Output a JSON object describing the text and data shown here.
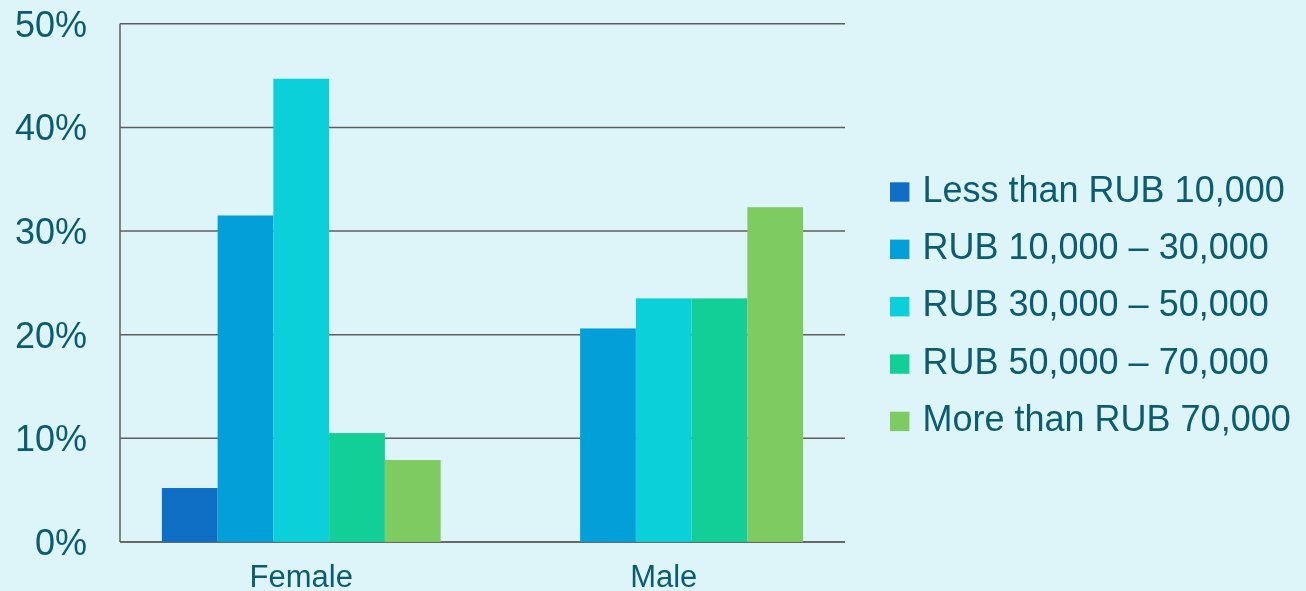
{
  "chart_data": {
    "type": "bar",
    "categories": [
      "Female",
      "Male"
    ],
    "series": [
      {
        "name": "Less than RUB 10,000",
        "color": "#0e6fc5",
        "values": [
          5.2,
          null
        ]
      },
      {
        "name": "RUB 10,000 – 30,000",
        "color": "#029fd8",
        "values": [
          31.5,
          20.6
        ]
      },
      {
        "name": "RUB 30,000 – 50,000",
        "color": "#0cd0d9",
        "values": [
          44.7,
          23.5
        ]
      },
      {
        "name": "RUB 50,000 – 70,000",
        "color": "#12cf98",
        "values": [
          10.5,
          23.5
        ]
      },
      {
        "name": "More than RUB 70,000",
        "color": "#7ecb61",
        "values": [
          7.9,
          32.3
        ]
      }
    ],
    "ylim": [
      0,
      50
    ],
    "yticks": [
      {
        "value": 0,
        "label": "0%"
      },
      {
        "value": 10,
        "label": "10%"
      },
      {
        "value": 20,
        "label": "20%"
      },
      {
        "value": 30,
        "label": "30%"
      },
      {
        "value": 40,
        "label": "40%"
      },
      {
        "value": 50,
        "label": "50%"
      }
    ],
    "grid": "y",
    "legend": "right"
  }
}
